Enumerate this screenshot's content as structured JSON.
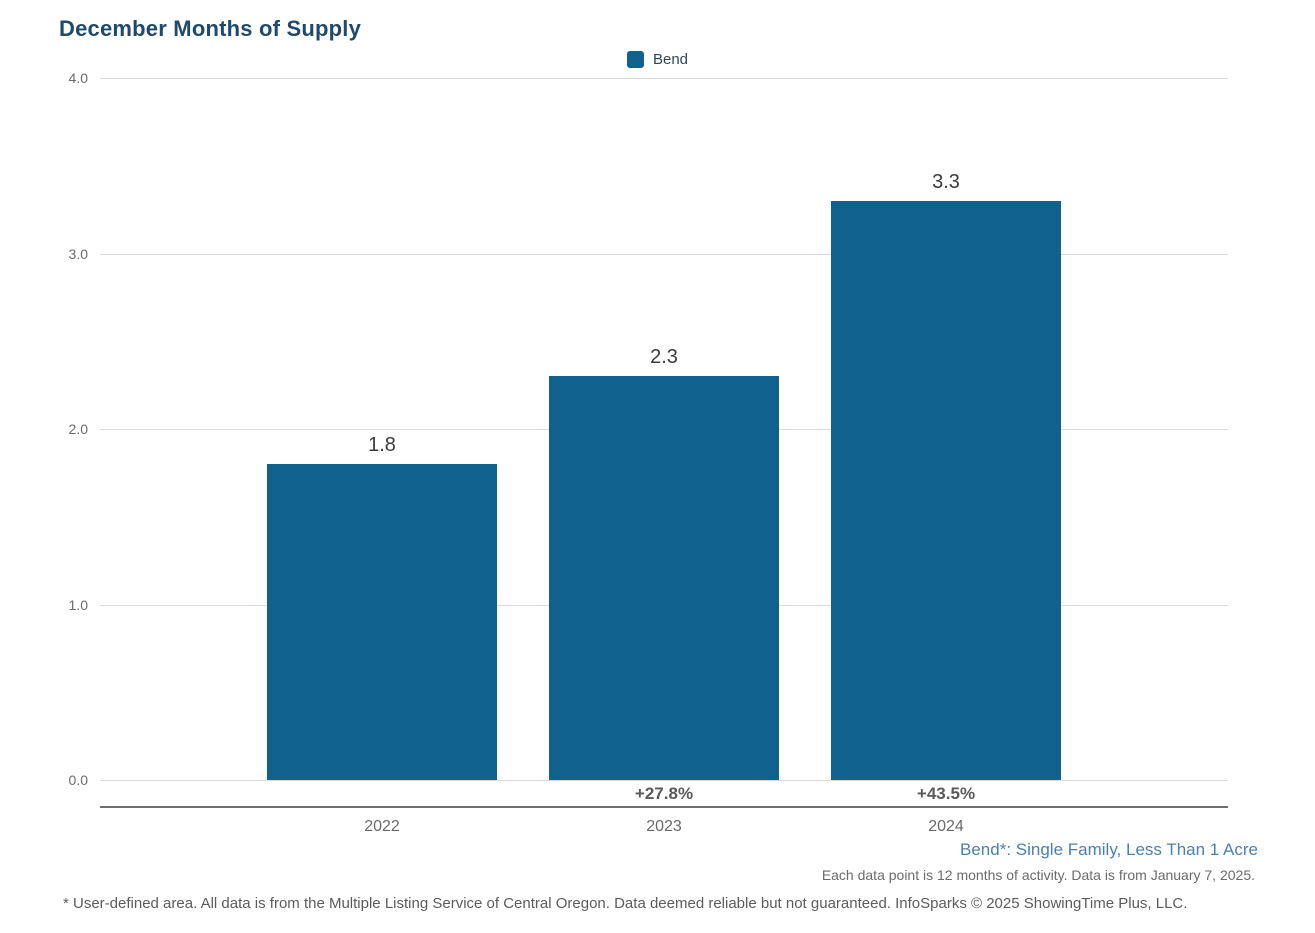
{
  "title": "December Months of Supply",
  "legend": {
    "label": "Bend",
    "swatch_color": "#11618F"
  },
  "chart_data": {
    "type": "bar",
    "title": "December Months of Supply",
    "categories": [
      "2022",
      "2023",
      "2024"
    ],
    "series": [
      {
        "name": "Bend",
        "values": [
          1.8,
          2.3,
          3.3
        ]
      }
    ],
    "value_labels": [
      "1.8",
      "2.3",
      "3.3"
    ],
    "pct_change_labels": [
      "",
      "+27.8%",
      "+43.5%"
    ],
    "xlabel": "",
    "ylabel": "",
    "ylim": [
      0,
      4
    ],
    "yticks": [
      {
        "value": 0.0,
        "label": "0.0"
      },
      {
        "value": 1.0,
        "label": "1.0"
      },
      {
        "value": 2.0,
        "label": "2.0"
      },
      {
        "value": 3.0,
        "label": "3.0"
      },
      {
        "value": 4.0,
        "label": "4.0"
      }
    ],
    "grid": true,
    "legend_position": "top-center",
    "bar_color": "#11618F"
  },
  "annotations": {
    "series_note": "Bend*: Single Family, Less Than 1 Acre",
    "data_note": "Each data point is 12 months of activity. Data is from January 7, 2025.",
    "footnote": "* User-defined area. All data is from the Multiple Listing Service of Central Oregon. Data deemed reliable but not guaranteed. InfoSparks © 2025 ShowingTime Plus, LLC."
  },
  "colors": {
    "bar": "#11618F",
    "title": "#1F4A6E",
    "gridline": "#DBDBDB",
    "axis_line": "#6E6E6E",
    "tick_text": "#6B6B6B",
    "value_text": "#3C3C3C",
    "pct_text": "#5A5A5A",
    "series_note_text": "#4C80B0",
    "footnote_text": "#5C5C5C"
  }
}
